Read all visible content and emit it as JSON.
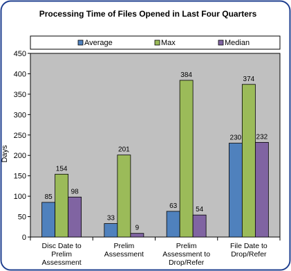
{
  "chart_data": {
    "type": "bar",
    "title": "Processing Time of Files Opened in Last Four Quarters",
    "xlabel": "",
    "ylabel": "Days",
    "ylim": [
      0,
      450
    ],
    "yticks": [
      0,
      50,
      100,
      150,
      200,
      250,
      300,
      350,
      400,
      450
    ],
    "grid": false,
    "legend_position": "top",
    "categories": [
      [
        "Disc Date to",
        "Prelim",
        "Assessment"
      ],
      [
        "Prelim",
        "Assessment"
      ],
      [
        "Prelim",
        "Assessment to",
        "Drop/Refer"
      ],
      [
        "File Date to",
        "Drop/Refer"
      ]
    ],
    "series": [
      {
        "name": "Average",
        "color": "#4f81bd",
        "values": [
          85,
          33,
          63,
          230
        ]
      },
      {
        "name": "Max",
        "color": "#9bbb59",
        "values": [
          154,
          201,
          384,
          374
        ]
      },
      {
        "name": "Median",
        "color": "#8064a2",
        "values": [
          98,
          9,
          54,
          232
        ]
      }
    ],
    "plot_background": "#c0c0c0",
    "border_color": "#1f3f8f"
  }
}
